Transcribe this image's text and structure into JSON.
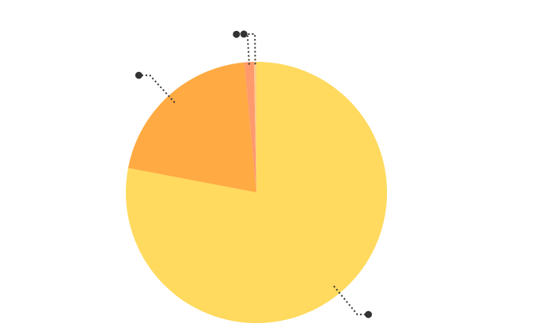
{
  "chart_data": {
    "type": "pie",
    "start_angle_deg": 0,
    "direction": "clockwise",
    "labels_visible": false,
    "legend": "none",
    "slices": [
      {
        "value": 0.78,
        "color": "#FFDA5E"
      },
      {
        "value": 0.205,
        "color": "#FFAA42"
      },
      {
        "value": 0.012,
        "color": "#FF9A6C"
      },
      {
        "value": 0.003,
        "color": "#FFC98A"
      }
    ]
  }
}
